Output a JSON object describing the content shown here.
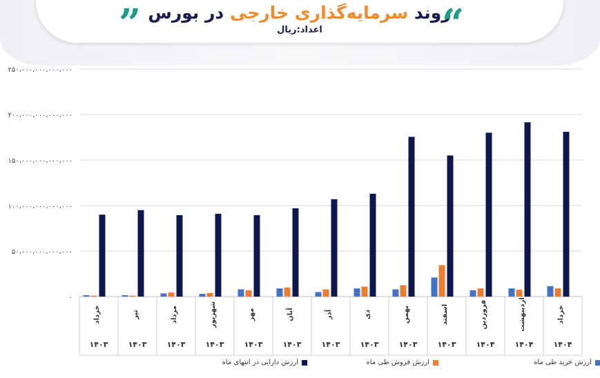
{
  "header": {
    "title_part1": "روند",
    "title_accent": "سرمایه‌گذاری خارجی",
    "title_part2": "در بورس",
    "subtitle": "اعداد:ریال",
    "quote_left": "“",
    "quote_right": "”"
  },
  "chart_data": {
    "type": "bar",
    "categories": [
      {
        "month": "خرداد",
        "year": "۱۴۰۳"
      },
      {
        "month": "تیر",
        "year": "۱۴۰۳"
      },
      {
        "month": "مرداد",
        "year": "۱۴۰۳"
      },
      {
        "month": "شهریور",
        "year": "۱۴۰۳"
      },
      {
        "month": "مهر",
        "year": "۱۴۰۳"
      },
      {
        "month": "آبان",
        "year": "۱۴۰۳"
      },
      {
        "month": "آذر",
        "year": "۱۴۰۳"
      },
      {
        "month": "دی",
        "year": "۱۴۰۳"
      },
      {
        "month": "بهمن",
        "year": "۱۴۰۳"
      },
      {
        "month": "اسفند",
        "year": "۱۴۰۳"
      },
      {
        "month": "فروردین",
        "year": "۱۴۰۴"
      },
      {
        "month": "اردیبهشت",
        "year": "۱۴۰۴"
      },
      {
        "month": "خرداد",
        "year": "۱۴۰۴"
      }
    ],
    "series": [
      {
        "name": "ارزش خرید طی ماه",
        "color": "#4472c4",
        "values": [
          1500000000000.0,
          1500000000000.0,
          3500000000000.0,
          3000000000000.0,
          8000000000000.0,
          9000000000000.0,
          5000000000000.0,
          9000000000000.0,
          8000000000000.0,
          21000000000000.0,
          7000000000000.0,
          9000000000000.0,
          11500000000000.0
        ]
      },
      {
        "name": "ارزش فروش طی ماه",
        "color": "#ed7d31",
        "values": [
          1000000000000.0,
          1000000000000.0,
          4500000000000.0,
          4000000000000.0,
          7000000000000.0,
          10000000000000.0,
          8000000000000.0,
          11000000000000.0,
          12500000000000.0,
          34500000000000.0,
          9000000000000.0,
          7500000000000.0,
          9000000000000.0
        ]
      },
      {
        "name": "ارزش دارایی در انتهای ماه",
        "color": "#0d1850",
        "values": [
          90000000000000.0,
          95000000000000.0,
          89500000000000.0,
          91000000000000.0,
          89500000000000.0,
          97000000000000.0,
          107000000000000.0,
          113000000000000.0,
          175500000000000.0,
          155000000000000.0,
          180000000000000.0,
          191500000000000.0,
          181000000000000.0
        ]
      }
    ],
    "y_ticks": [
      "۰",
      "۵۰،۰۰۰،۰۰۰،۰۰۰،۰۰۰",
      "۱۰۰،۰۰۰،۰۰۰،۰۰۰،۰۰۰",
      "۱۵۰،۰۰۰،۰۰۰،۰۰۰،۰۰۰",
      "۲۰۰،۰۰۰،۰۰۰،۰۰۰،۰۰۰",
      "۲۵۰،۰۰۰،۰۰۰،۰۰۰،۰۰۰"
    ],
    "y_tick_values": [
      0,
      50000000000000.0,
      100000000000000.0,
      150000000000000.0,
      200000000000000.0,
      250000000000000.0
    ],
    "ylim": [
      0,
      250000000000000.0
    ],
    "grid": true,
    "legend_position": "bottom"
  }
}
